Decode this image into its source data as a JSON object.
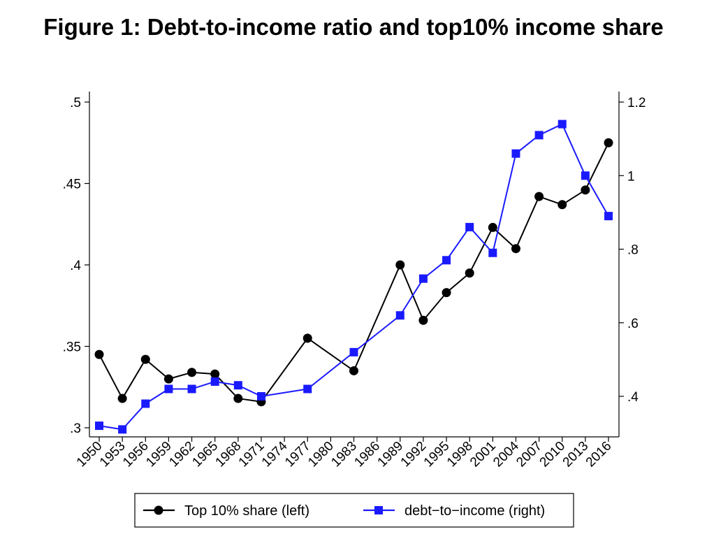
{
  "title": "Figure 1: Debt-to-income ratio and top10% income share",
  "chart_data": {
    "type": "line",
    "x": [
      "1950",
      "1953",
      "1956",
      "1959",
      "1962",
      "1965",
      "1968",
      "1971",
      "1974",
      "1977",
      "1980",
      "1983",
      "1986",
      "1989",
      "1992",
      "1995",
      "1998",
      "2001",
      "2004",
      "2007",
      "2010",
      "2013",
      "2016"
    ],
    "x_tick_labels": [
      "1950",
      "1953",
      "1956",
      "1959",
      "1962",
      "1965",
      "1968",
      "1971",
      "1974",
      "1977",
      "1980",
      "1983",
      "1986",
      "1989",
      "1992",
      "1995",
      "1998",
      "2001",
      "2004",
      "2007",
      "2010",
      "2013",
      "2016"
    ],
    "y_left": {
      "ylim": [
        0.3,
        0.5
      ],
      "ticks": [
        0.3,
        0.35,
        0.4,
        0.45,
        0.5
      ],
      "tick_labels": [
        ".3",
        ".35",
        ".4",
        ".45",
        ".5"
      ]
    },
    "y_right": {
      "ylim": [
        0.29,
        1.22
      ],
      "ticks": [
        0.4,
        0.6,
        0.8,
        1.0,
        1.2
      ],
      "tick_labels": [
        ".4",
        ".6",
        ".8",
        "1",
        "1.2"
      ]
    },
    "series": [
      {
        "name": "Top 10% share (left)",
        "axis": "left",
        "color": "#000000",
        "marker": "circle",
        "points": [
          {
            "x": "1950",
            "y": 0.345
          },
          {
            "x": "1953",
            "y": 0.318
          },
          {
            "x": "1956",
            "y": 0.342
          },
          {
            "x": "1959",
            "y": 0.33
          },
          {
            "x": "1962",
            "y": 0.334
          },
          {
            "x": "1965",
            "y": 0.333
          },
          {
            "x": "1968",
            "y": 0.318
          },
          {
            "x": "1971",
            "y": 0.316
          },
          {
            "x": "1977",
            "y": 0.355
          },
          {
            "x": "1983",
            "y": 0.335
          },
          {
            "x": "1989",
            "y": 0.4
          },
          {
            "x": "1992",
            "y": 0.366
          },
          {
            "x": "1995",
            "y": 0.383
          },
          {
            "x": "1998",
            "y": 0.395
          },
          {
            "x": "2001",
            "y": 0.423
          },
          {
            "x": "2004",
            "y": 0.41
          },
          {
            "x": "2007",
            "y": 0.442
          },
          {
            "x": "2010",
            "y": 0.437
          },
          {
            "x": "2013",
            "y": 0.446
          },
          {
            "x": "2016",
            "y": 0.475
          }
        ]
      },
      {
        "name": "debt−to−income (right)",
        "axis": "right",
        "color": "#1a1aff",
        "marker": "square",
        "points": [
          {
            "x": "1950",
            "y": 0.32
          },
          {
            "x": "1953",
            "y": 0.31
          },
          {
            "x": "1956",
            "y": 0.38
          },
          {
            "x": "1959",
            "y": 0.42
          },
          {
            "x": "1962",
            "y": 0.42
          },
          {
            "x": "1965",
            "y": 0.44
          },
          {
            "x": "1968",
            "y": 0.43
          },
          {
            "x": "1971",
            "y": 0.4
          },
          {
            "x": "1977",
            "y": 0.42
          },
          {
            "x": "1983",
            "y": 0.52
          },
          {
            "x": "1989",
            "y": 0.62
          },
          {
            "x": "1992",
            "y": 0.72
          },
          {
            "x": "1995",
            "y": 0.77
          },
          {
            "x": "1998",
            "y": 0.86
          },
          {
            "x": "2001",
            "y": 0.79
          },
          {
            "x": "2004",
            "y": 1.06
          },
          {
            "x": "2007",
            "y": 1.11
          },
          {
            "x": "2010",
            "y": 1.14
          },
          {
            "x": "2013",
            "y": 1.0
          },
          {
            "x": "2016",
            "y": 0.89
          }
        ]
      }
    ],
    "grid": false,
    "legend": "bottom"
  }
}
